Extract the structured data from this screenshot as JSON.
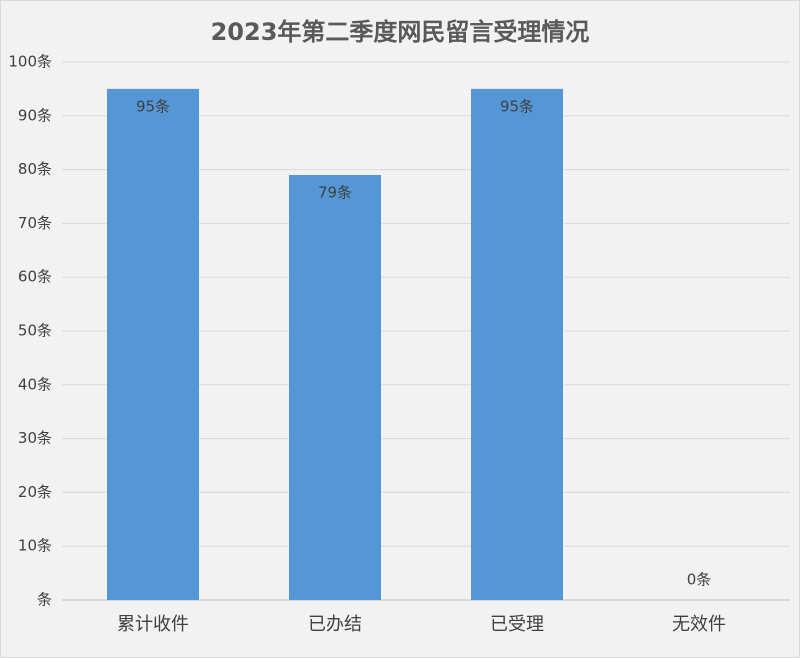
{
  "chart_data": {
    "type": "bar",
    "title": "2023年第二季度网民留言受理情况",
    "categories": [
      "累计收件",
      "已办结",
      "已受理",
      "无效件"
    ],
    "values": [
      95,
      79,
      95,
      0
    ],
    "value_labels": [
      "95条",
      "79条",
      "95条",
      "0条"
    ],
    "color": "#5597d6",
    "ylim": [
      0,
      100
    ],
    "yticks": [
      {
        "value": 0,
        "label": "条"
      },
      {
        "value": 10,
        "label": "10条"
      },
      {
        "value": 20,
        "label": "20条"
      },
      {
        "value": 30,
        "label": "30条"
      },
      {
        "value": 40,
        "label": "40条"
      },
      {
        "value": 50,
        "label": "50条"
      },
      {
        "value": 60,
        "label": "60条"
      },
      {
        "value": 70,
        "label": "70条"
      },
      {
        "value": 80,
        "label": "80条"
      },
      {
        "value": 90,
        "label": "90条"
      },
      {
        "value": 100,
        "label": "100条"
      }
    ],
    "grid": true
  }
}
